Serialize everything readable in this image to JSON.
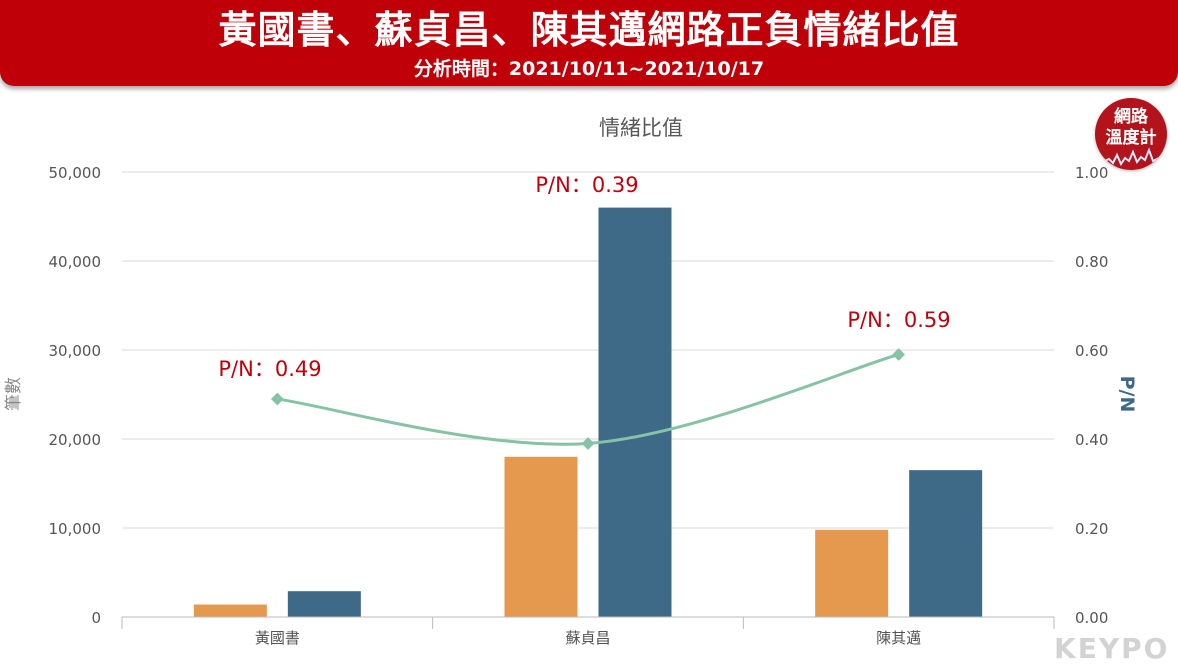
{
  "header": {
    "title": "黃國書、蘇貞昌、陳其邁網路正負情緒比值",
    "subtitle": "分析時間：2021/10/11~2021/10/17"
  },
  "badge": {
    "line1": "網路",
    "line2": "溫度計"
  },
  "logo": {
    "text": "KEYPO"
  },
  "colors": {
    "header_bg": "#bf0008",
    "bar_positive": "#e4994f",
    "bar_negative": "#3e6a87",
    "line": "#86c3a5",
    "annotation": "#c0000b"
  },
  "chart_data": {
    "type": "bar",
    "title": "情緒比值",
    "categories": [
      "黃國書",
      "蘇貞昌",
      "陳其邁"
    ],
    "series": [
      {
        "values": [
          1400,
          18000,
          9800
        ],
        "color": "#e4994f"
      },
      {
        "values": [
          2900,
          46000,
          16500
        ],
        "color": "#3e6a87"
      }
    ],
    "line_series": {
      "name": "P/N",
      "values": [
        0.49,
        0.39,
        0.59
      ],
      "axis": "right",
      "smooth": true
    },
    "annotations": [
      "P/N：0.49",
      "P/N：0.39",
      "P/N：0.59"
    ],
    "ylabel": "筆數",
    "y2label": "P/N",
    "ylim": [
      0,
      50000
    ],
    "y2lim": [
      0,
      1
    ],
    "y_ticks": [
      "0",
      "10,000",
      "20,000",
      "30,000",
      "40,000",
      "50,000"
    ],
    "y2_ticks": [
      "0.00",
      "0.20",
      "0.40",
      "0.60",
      "0.80",
      "1.00"
    ],
    "grid": true,
    "legend": "none"
  }
}
